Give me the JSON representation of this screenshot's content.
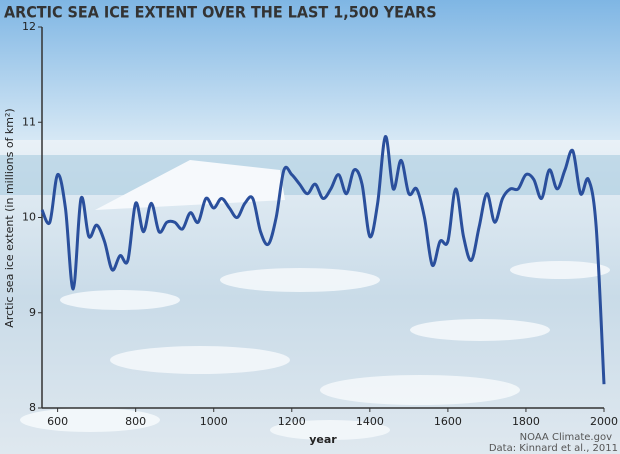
{
  "chart_data": {
    "type": "line",
    "title": "ARCTIC SEA ICE EXTENT OVER THE LAST 1,500 YEARS",
    "y_label": "Arctic sea ice extent (in millions of km²)",
    "x_label": "year",
    "credit": "NOAA Climate.gov",
    "source": "Data: Kinnard et al., 2011",
    "x": [
      560,
      580,
      600,
      620,
      640,
      660,
      680,
      700,
      720,
      740,
      760,
      780,
      800,
      820,
      840,
      860,
      880,
      900,
      920,
      940,
      960,
      980,
      1000,
      1020,
      1040,
      1060,
      1080,
      1100,
      1120,
      1140,
      1160,
      1180,
      1200,
      1220,
      1240,
      1260,
      1280,
      1300,
      1320,
      1340,
      1360,
      1380,
      1400,
      1420,
      1440,
      1460,
      1480,
      1500,
      1520,
      1540,
      1560,
      1580,
      1600,
      1620,
      1640,
      1660,
      1680,
      1700,
      1720,
      1740,
      1760,
      1780,
      1800,
      1820,
      1840,
      1860,
      1880,
      1900,
      1920,
      1940,
      1960,
      1980,
      2000
    ],
    "values": [
      10.08,
      9.95,
      10.45,
      10.1,
      9.25,
      10.2,
      9.8,
      9.92,
      9.75,
      9.45,
      9.6,
      9.55,
      10.15,
      9.85,
      10.15,
      9.85,
      9.95,
      9.95,
      9.88,
      10.05,
      9.95,
      10.2,
      10.1,
      10.2,
      10.1,
      10.0,
      10.15,
      10.2,
      9.85,
      9.72,
      10.0,
      10.5,
      10.45,
      10.35,
      10.25,
      10.35,
      10.2,
      10.3,
      10.45,
      10.25,
      10.5,
      10.35,
      9.8,
      10.15,
      10.85,
      10.3,
      10.6,
      10.25,
      10.3,
      10.0,
      9.5,
      9.75,
      9.75,
      10.3,
      9.8,
      9.55,
      9.9,
      10.25,
      9.95,
      10.2,
      10.3,
      10.3,
      10.45,
      10.4,
      10.2,
      10.5,
      10.3,
      10.5,
      10.7,
      10.25,
      10.4,
      9.9,
      8.25
    ],
    "color": "#2a4f9c",
    "xlim": [
      560,
      2000
    ],
    "xticks": [
      600,
      800,
      1000,
      1200,
      1400,
      1600,
      1800,
      2000
    ],
    "ylim": [
      8,
      12
    ],
    "yticks": [
      8,
      9,
      10,
      11,
      12
    ]
  }
}
